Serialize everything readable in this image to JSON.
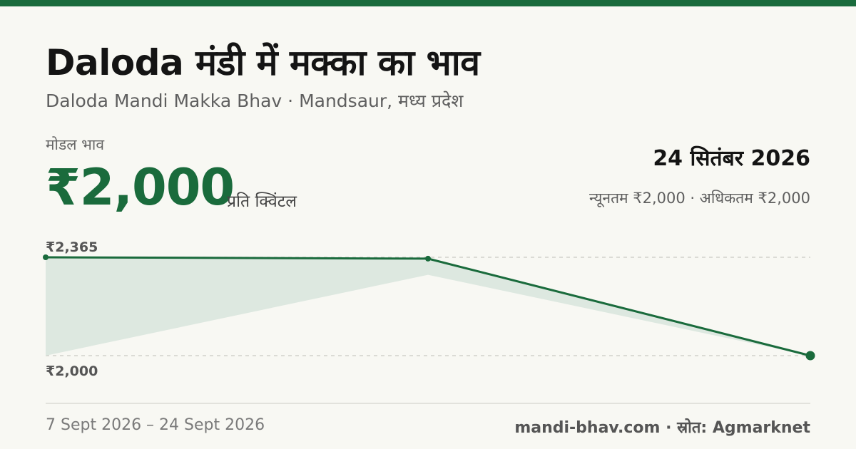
{
  "header": {
    "title": "Daloda मंडी में मक्का का भाव",
    "subtitle": "Daloda Mandi Makka Bhav · Mandsaur, मध्य प्रदेश"
  },
  "summary": {
    "modal_label": "मोडल भाव",
    "modal_price": "₹2,000",
    "unit": "प्रति क्विंटल",
    "date": "24 सितंबर 2026",
    "min_max": "न्यूनतम ₹2,000 · अधिकतम ₹2,000"
  },
  "colors": {
    "accent": "#1a6b3c",
    "band_fill": "#dde8e0",
    "background": "#f8f8f3"
  },
  "chart_data": {
    "type": "line",
    "x": [
      "7 Sept 2026",
      "",
      "24 Sept 2026"
    ],
    "series": [
      {
        "values": [
          2365,
          2360,
          2000
        ]
      }
    ],
    "band": {
      "min": [
        2000,
        2300,
        2000
      ],
      "max": [
        2365,
        2360,
        2000
      ]
    },
    "ylim": [
      2000,
      2365
    ],
    "y_labels": {
      "max": "₹2,365",
      "min": "₹2,000"
    },
    "grid": true
  },
  "footer": {
    "date_range": "7 Sept 2026 – 24 Sept 2026",
    "source": "mandi-bhav.com · स्रोत: Agmarknet"
  }
}
